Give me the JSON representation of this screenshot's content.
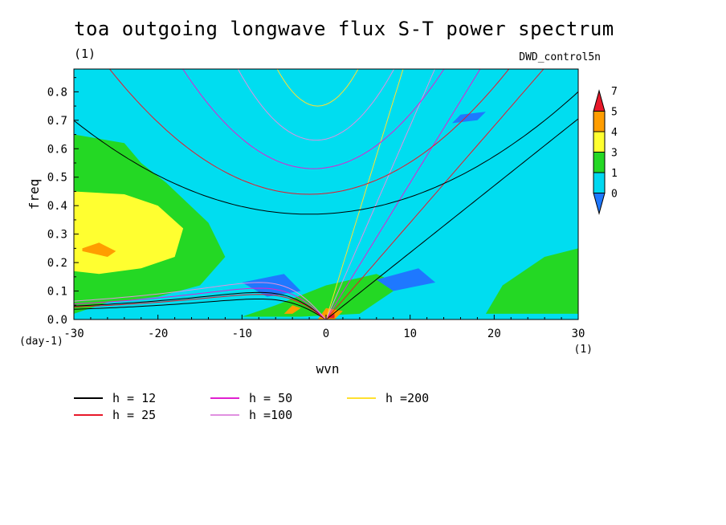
{
  "chart_data": {
    "type": "heatmap",
    "title": "toa outgoing longwave flux S-T power spectrum",
    "subtitle": "(1)",
    "case_label": "DWD_control5n",
    "xlabel": "wvn",
    "ylabel": "freq",
    "x_unit": "(1)",
    "y_unit": "(day-1)",
    "xlim": [
      -30,
      30
    ],
    "ylim": [
      0,
      0.88
    ],
    "x_ticks": [
      -30,
      -20,
      -10,
      0,
      10,
      20,
      30
    ],
    "y_ticks": [
      0.0,
      0.1,
      0.2,
      0.3,
      0.4,
      0.5,
      0.6,
      0.7,
      0.8
    ],
    "colorbar": {
      "levels": [
        "0",
        "1",
        "3",
        "4",
        "5",
        "7"
      ],
      "colors": [
        "#1e78ff",
        "#00d8f0",
        "#24d824",
        "#ffff30",
        "#ff9d00",
        "#e8182a"
      ]
    },
    "background_color": "#00ddf0",
    "regions": [
      {
        "level": 2,
        "x": [
          -30,
          -30,
          -24,
          -22,
          -19,
          -14,
          -12,
          -15,
          -20,
          -26,
          -30
        ],
        "y": [
          0.02,
          0.65,
          0.62,
          0.55,
          0.48,
          0.34,
          0.22,
          0.12,
          0.08,
          0.06,
          0.02
        ]
      },
      {
        "level": 3,
        "x": [
          -30,
          -30,
          -24,
          -20,
          -17,
          -18,
          -22,
          -27,
          -30
        ],
        "y": [
          0.17,
          0.45,
          0.44,
          0.4,
          0.32,
          0.22,
          0.18,
          0.16,
          0.17
        ]
      },
      {
        "level": 4,
        "x": [
          -29,
          -27,
          -25,
          -26,
          -29
        ],
        "y": [
          0.25,
          0.27,
          0.24,
          0.22,
          0.24
        ]
      },
      {
        "level": 2,
        "x": [
          19,
          30,
          30,
          26,
          21
        ],
        "y": [
          0.02,
          0.02,
          0.25,
          0.22,
          0.12
        ]
      },
      {
        "level": 2,
        "x": [
          -10,
          -3,
          4,
          9,
          6,
          0,
          -6
        ],
        "y": [
          0.01,
          0.01,
          0.02,
          0.12,
          0.16,
          0.12,
          0.05
        ]
      },
      {
        "level": 0,
        "x": [
          -10,
          -5,
          -3,
          -7
        ],
        "y": [
          0.13,
          0.16,
          0.1,
          0.08
        ]
      },
      {
        "level": 0,
        "x": [
          6,
          11,
          13,
          8
        ],
        "y": [
          0.14,
          0.18,
          0.13,
          0.1
        ]
      },
      {
        "level": 0,
        "x": [
          16,
          19,
          18,
          15
        ],
        "y": [
          0.72,
          0.73,
          0.7,
          0.69
        ]
      },
      {
        "level": 4,
        "x": [
          -1,
          1,
          2,
          0
        ],
        "y": [
          0.0,
          0.0,
          0.03,
          0.04
        ]
      },
      {
        "level": 4,
        "x": [
          -5,
          -4,
          -3,
          -4
        ],
        "y": [
          0.02,
          0.02,
          0.04,
          0.05
        ]
      },
      {
        "level": 5,
        "x": [
          0,
          1,
          1
        ],
        "y": [
          0.005,
          0.005,
          0.02
        ]
      }
    ],
    "dispersion_lines": [
      {
        "h": 12,
        "color": "#000000",
        "kind": "kelvin",
        "slope": 0.0235
      },
      {
        "h": 25,
        "color": "#e8182a",
        "kind": "kelvin",
        "slope": 0.034
      },
      {
        "h": 50,
        "color": "#e020d0",
        "kind": "kelvin",
        "slope": 0.048
      },
      {
        "h": 100,
        "color": "#e090e0",
        "kind": "kelvin",
        "slope": 0.068
      },
      {
        "h": 200,
        "color": "#ffe030",
        "kind": "kelvin",
        "slope": 0.096
      },
      {
        "h": 12,
        "color": "#000000",
        "kind": "ig",
        "f0": 0.37,
        "k0": -2,
        "c": 0.00042
      },
      {
        "h": 25,
        "color": "#e8182a",
        "kind": "ig",
        "f0": 0.44,
        "k0": -2,
        "c": 0.00078
      },
      {
        "h": 50,
        "color": "#e020d0",
        "kind": "ig",
        "f0": 0.53,
        "k0": -1.5,
        "c": 0.00145
      },
      {
        "h": 100,
        "color": "#e090e0",
        "kind": "ig",
        "f0": 0.63,
        "k0": -1.2,
        "c": 0.0029
      },
      {
        "h": 200,
        "color": "#ffe030",
        "kind": "ig",
        "f0": 0.75,
        "k0": -1.0,
        "c": 0.0056
      },
      {
        "h": 12,
        "color": "#000000",
        "kind": "er",
        "peak": 0.095
      },
      {
        "h": 12,
        "color": "#000000",
        "kind": "er",
        "peak": 0.072
      },
      {
        "h": 25,
        "color": "#e8182a",
        "kind": "er",
        "peak": 0.088
      },
      {
        "h": 50,
        "color": "#e020d0",
        "kind": "er",
        "peak": 0.11
      },
      {
        "h": 100,
        "color": "#e090e0",
        "kind": "er",
        "peak": 0.13
      }
    ],
    "legend": [
      {
        "label": "h = 12",
        "color": "#000000"
      },
      {
        "label": "h = 25",
        "color": "#e8182a"
      },
      {
        "label": "h = 50",
        "color": "#e020d0"
      },
      {
        "label": "h =100",
        "color": "#e090e0"
      },
      {
        "label": "h =200",
        "color": "#ffe030"
      }
    ],
    "grid": false
  }
}
